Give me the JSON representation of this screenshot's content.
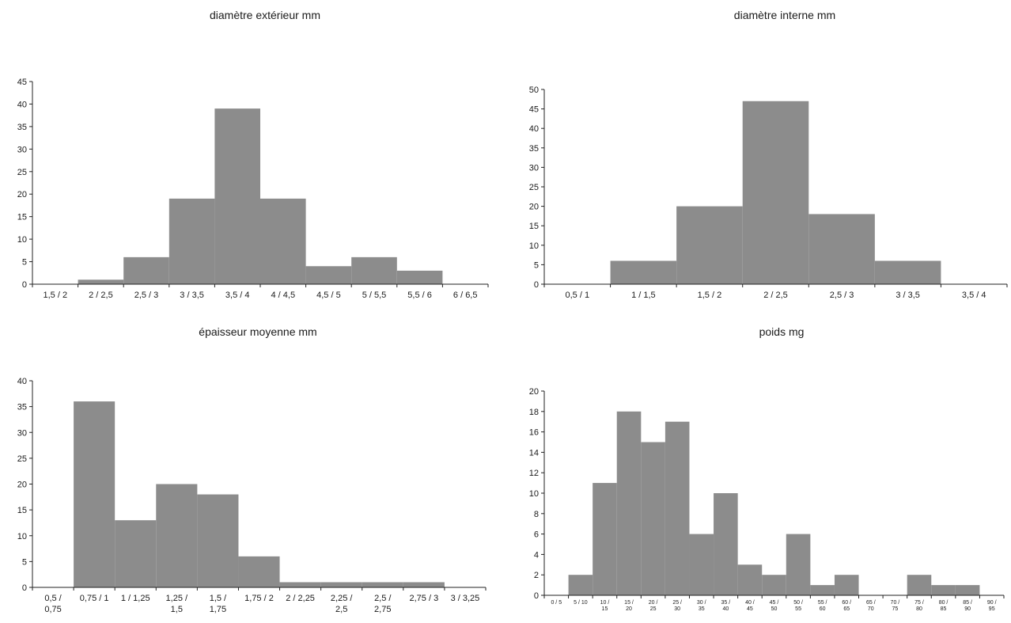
{
  "bar_color": "#8c8c8c",
  "chart_data": [
    {
      "type": "bar",
      "title": "diamètre extérieur mm",
      "xlabel": "",
      "ylabel": "",
      "categories": [
        "1,5 / 2",
        "2 / 2,5",
        "2,5 / 3",
        "3 / 3,5",
        "3,5 / 4",
        "4 / 4,5",
        "4,5 / 5",
        "5 / 5,5",
        "5,5 / 6",
        "6 / 6,5"
      ],
      "values": [
        0,
        1,
        6,
        19,
        39,
        19,
        4,
        6,
        3,
        0
      ],
      "ylim": [
        0,
        45
      ],
      "yticks": [
        0,
        5,
        10,
        15,
        20,
        25,
        30,
        35,
        40,
        45
      ],
      "grid": false
    },
    {
      "type": "bar",
      "title": "diamètre interne mm",
      "xlabel": "",
      "ylabel": "",
      "categories": [
        "0,5 / 1",
        "1 / 1,5",
        "1,5 / 2",
        "2 / 2,5",
        "2,5 / 3",
        "3 / 3,5",
        "3,5 / 4"
      ],
      "values": [
        0,
        6,
        20,
        47,
        18,
        6,
        0
      ],
      "ylim": [
        0,
        50
      ],
      "yticks": [
        0,
        5,
        10,
        15,
        20,
        25,
        30,
        35,
        40,
        45,
        50
      ],
      "grid": false
    },
    {
      "type": "bar",
      "title": "épaisseur moyenne mm",
      "xlabel": "",
      "ylabel": "",
      "categories": [
        [
          "0,5 /",
          "0,75"
        ],
        [
          "0,75 / 1"
        ],
        [
          "1 / 1,25"
        ],
        [
          "1,25 /",
          "1,5"
        ],
        [
          "1,5 /",
          "1,75"
        ],
        [
          "1,75 / 2"
        ],
        [
          "2 / 2,25"
        ],
        [
          "2,25 /",
          "2,5"
        ],
        [
          "2,5 /",
          "2,75"
        ],
        [
          "2,75 / 3"
        ],
        [
          "3 / 3,25"
        ]
      ],
      "values": [
        0,
        36,
        13,
        20,
        18,
        6,
        1,
        1,
        1,
        1,
        0
      ],
      "ylim": [
        0,
        40
      ],
      "yticks": [
        0,
        5,
        10,
        15,
        20,
        25,
        30,
        35,
        40
      ],
      "grid": false
    },
    {
      "type": "bar",
      "title": "poids mg",
      "xlabel": "",
      "ylabel": "",
      "categories": [
        [
          "0 / 5"
        ],
        [
          "5 / 10"
        ],
        [
          "10 /",
          "15"
        ],
        [
          "15 /",
          "20"
        ],
        [
          "20 /",
          "25"
        ],
        [
          "25 /",
          "30"
        ],
        [
          "30 /",
          "35"
        ],
        [
          "35 /",
          "40"
        ],
        [
          "40 /",
          "45"
        ],
        [
          "45 /",
          "50"
        ],
        [
          "50 /",
          "55"
        ],
        [
          "55 /",
          "60"
        ],
        [
          "60 /",
          "65"
        ],
        [
          "65 /",
          "70"
        ],
        [
          "70 /",
          "75"
        ],
        [
          "75 /",
          "80"
        ],
        [
          "80 /",
          "85"
        ],
        [
          "85 /",
          "90"
        ],
        [
          "90 /",
          "95"
        ]
      ],
      "values": [
        0,
        2,
        11,
        18,
        15,
        17,
        6,
        10,
        3,
        2,
        6,
        1,
        2,
        0,
        0,
        2,
        1,
        1,
        0
      ],
      "ylim": [
        0,
        20
      ],
      "yticks": [
        0,
        2,
        4,
        6,
        8,
        10,
        12,
        14,
        16,
        18,
        20
      ],
      "grid": false
    }
  ]
}
